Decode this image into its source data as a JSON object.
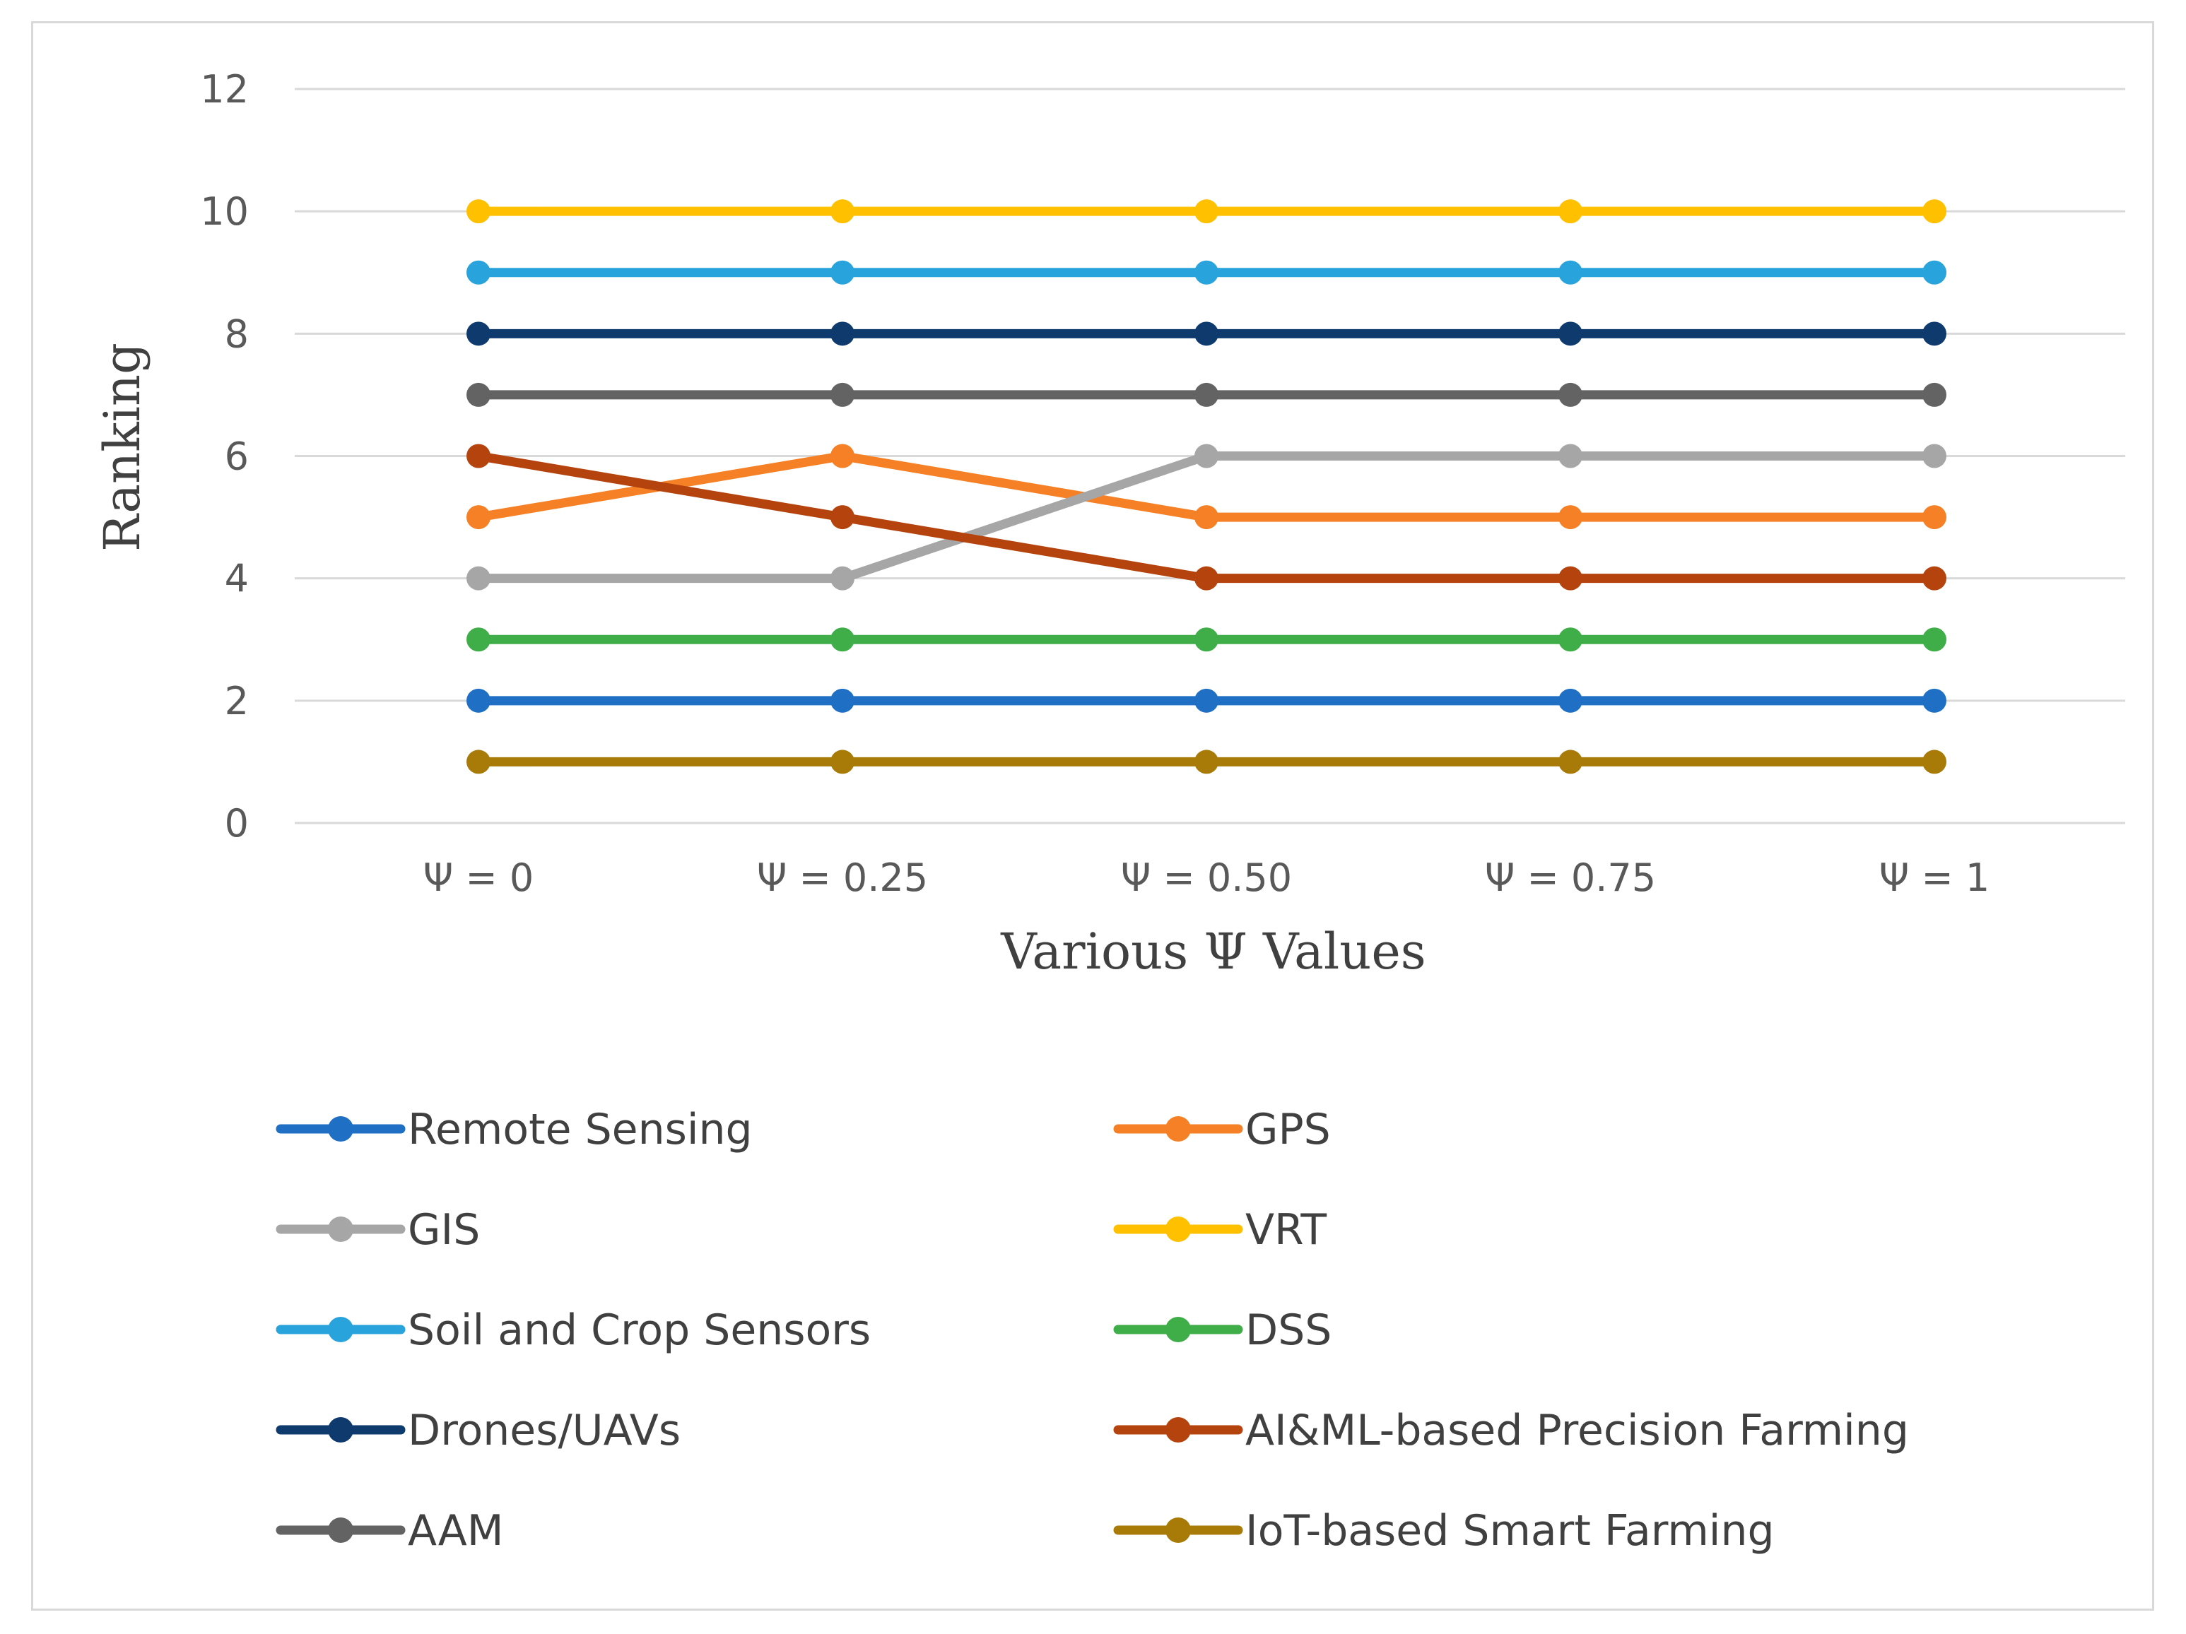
{
  "chart_data": {
    "type": "line",
    "title": "",
    "xlabel": "Various Ψ Values",
    "ylabel": "Ranking",
    "categories": [
      "Ψ = 0",
      "Ψ = 0.25",
      "Ψ = 0.50",
      "Ψ = 0.75",
      "Ψ = 1"
    ],
    "ylim": [
      0,
      12
    ],
    "yticks": [
      0,
      2,
      4,
      6,
      8,
      10,
      12
    ],
    "grid": "horizontal",
    "legend_position": "bottom",
    "series": [
      {
        "name": "Remote Sensing",
        "color": "#1f6fc5",
        "values": [
          2,
          2,
          2,
          2,
          2
        ]
      },
      {
        "name": "GPS",
        "color": "#f58025",
        "values": [
          5,
          6,
          5,
          5,
          5
        ]
      },
      {
        "name": "GIS",
        "color": "#a6a6a6",
        "values": [
          4,
          4,
          6,
          6,
          6
        ]
      },
      {
        "name": "VRT",
        "color": "#ffc000",
        "values": [
          10,
          10,
          10,
          10,
          10
        ]
      },
      {
        "name": "Soil and Crop Sensors",
        "color": "#29a3dc",
        "values": [
          9,
          9,
          9,
          9,
          9
        ]
      },
      {
        "name": "DSS",
        "color": "#3fae49",
        "values": [
          3,
          3,
          3,
          3,
          3
        ]
      },
      {
        "name": "Drones/UAVs",
        "color": "#0e3a6e",
        "values": [
          8,
          8,
          8,
          8,
          8
        ]
      },
      {
        "name": "AI&ML-based Precision Farming",
        "color": "#b5430e",
        "values": [
          6,
          5,
          4,
          4,
          4
        ]
      },
      {
        "name": "AAM",
        "color": "#636363",
        "values": [
          7,
          7,
          7,
          7,
          7
        ]
      },
      {
        "name": "IoT-based Smart Farming",
        "color": "#a87a08",
        "values": [
          1,
          1,
          1,
          1,
          1
        ]
      }
    ]
  }
}
